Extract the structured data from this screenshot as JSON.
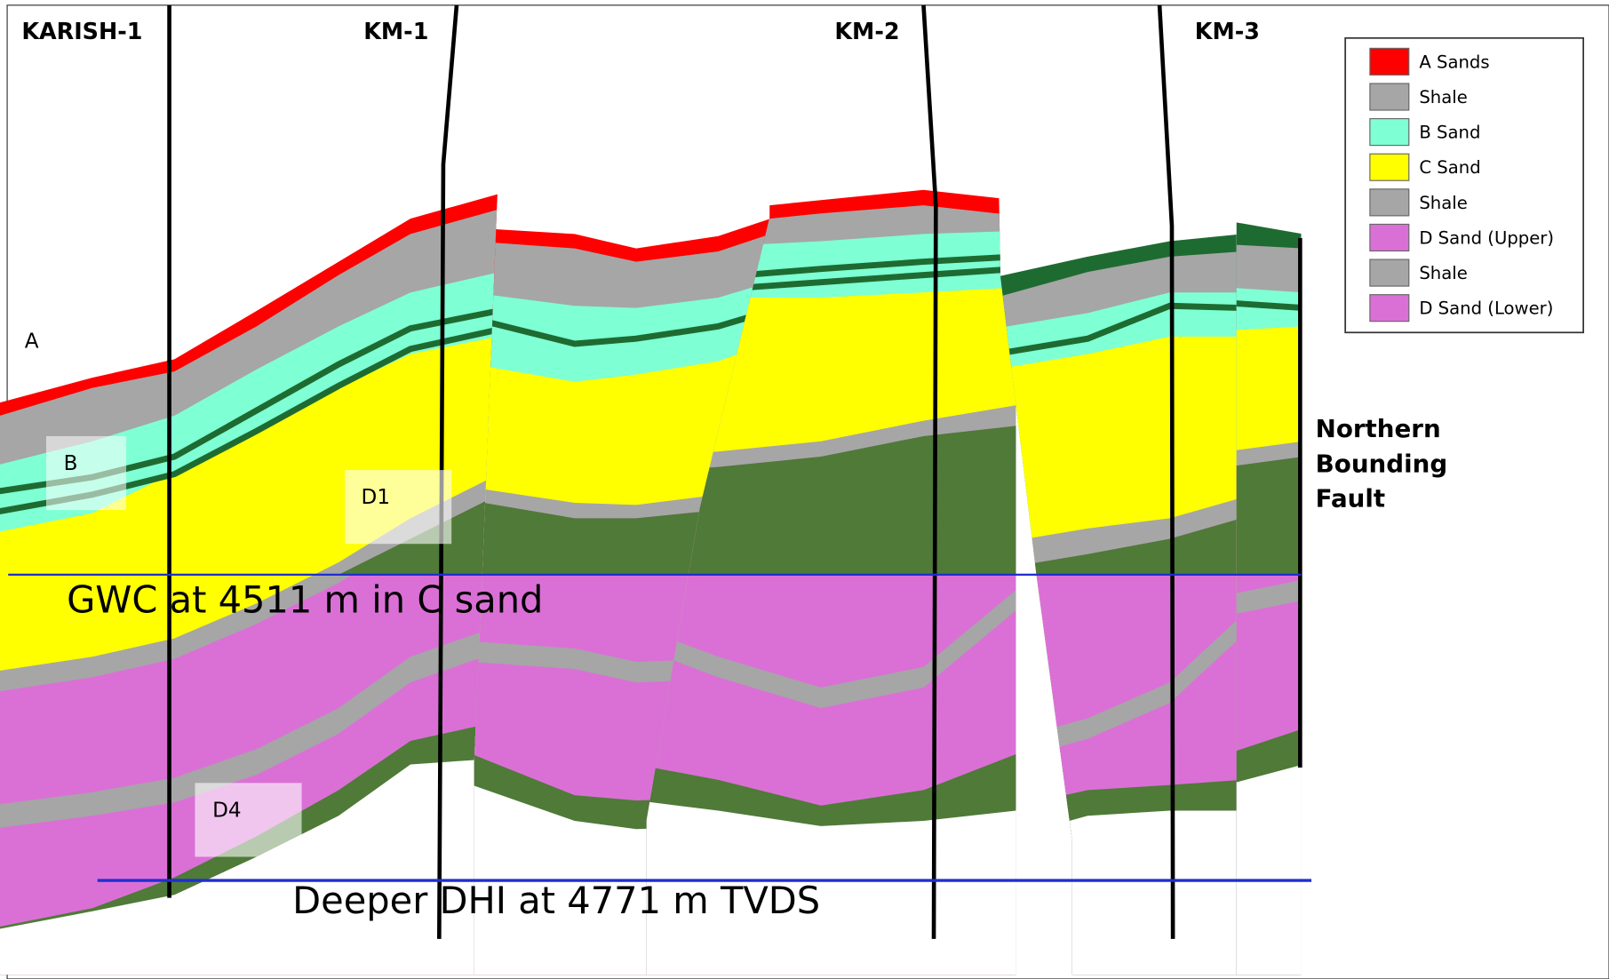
{
  "wells": [
    "KARISH-1",
    "KM-1",
    "KM-2",
    "KM-3"
  ],
  "legend": [
    {
      "label": "A Sands",
      "color": "#ff0000"
    },
    {
      "label": "Shale",
      "color": "#a6a6a6"
    },
    {
      "label": "B Sand",
      "color": "#7fffd4"
    },
    {
      "label": "C Sand",
      "color": "#ffff00"
    },
    {
      "label": "Shale",
      "color": "#a6a6a6"
    },
    {
      "label": "D Sand (Upper)",
      "color": "#da70d6"
    },
    {
      "label": "Shale",
      "color": "#a6a6a6"
    },
    {
      "label": "D Sand (Lower)",
      "color": "#da70d6"
    }
  ],
  "zone_labels": [
    "A",
    "B",
    "D1",
    "D4"
  ],
  "annotations": {
    "gwc": "GWC at 4511 m in C sand",
    "deeper_dhi": "Deeper DHI at 4771 m TVDS",
    "fault": [
      "Northern",
      "Bounding",
      "Fault"
    ]
  }
}
